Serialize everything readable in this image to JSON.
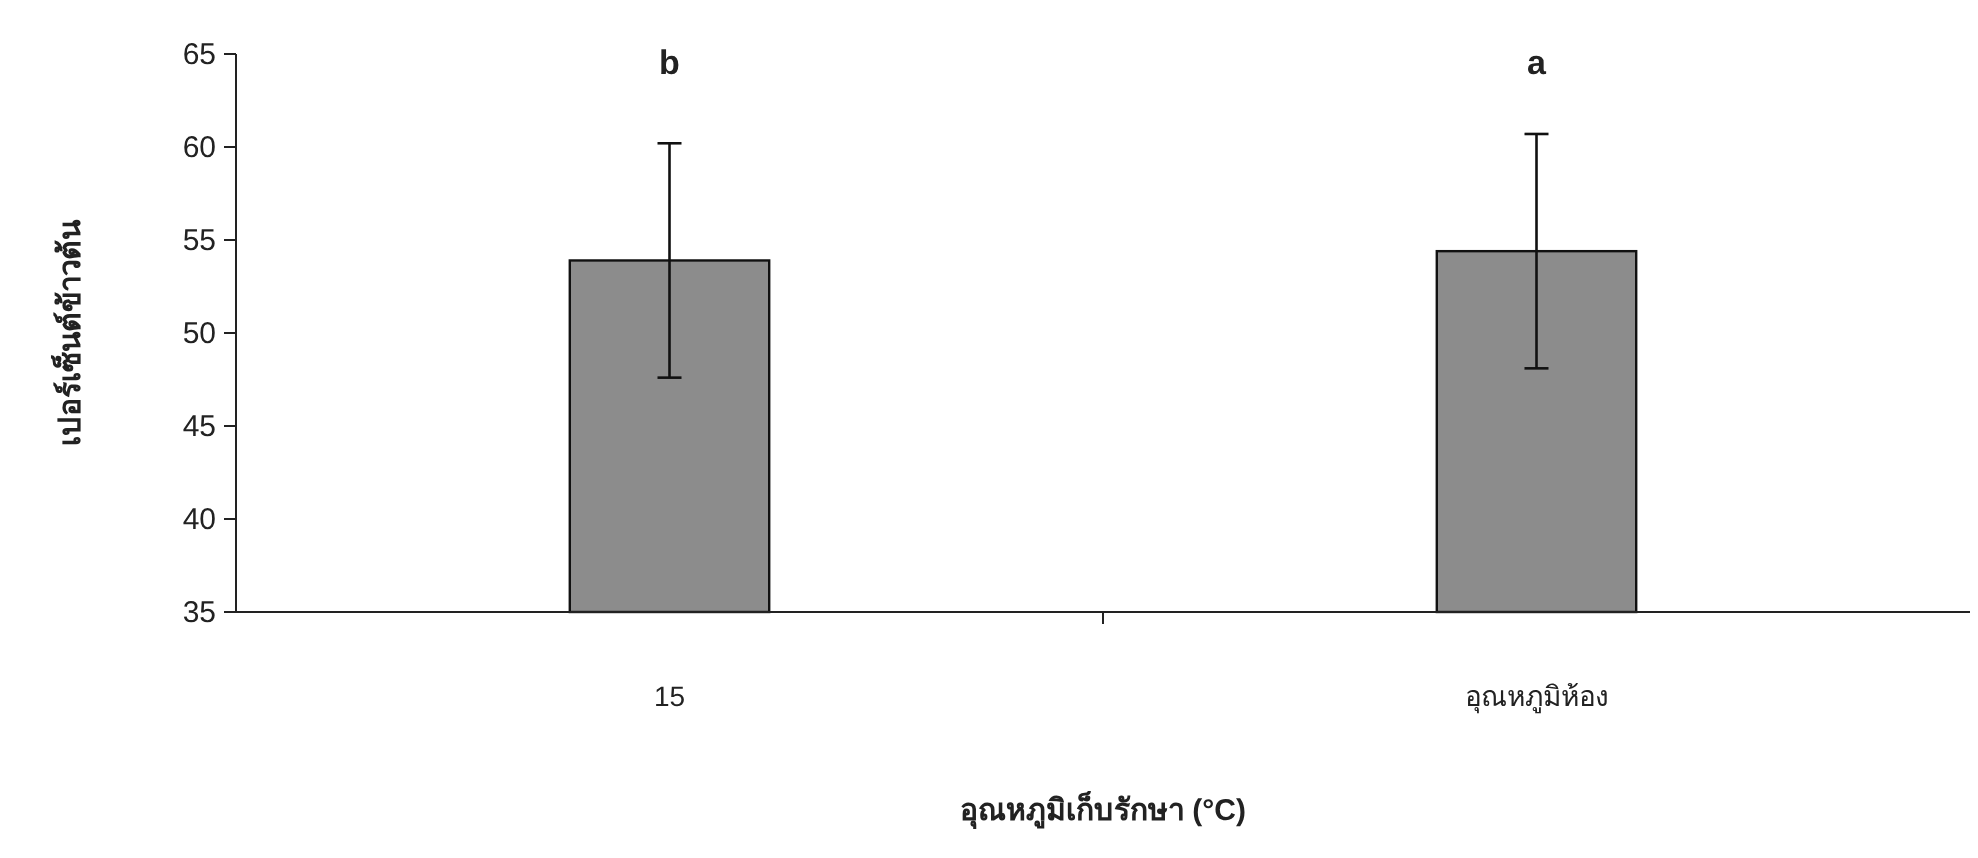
{
  "chart_data": {
    "type": "bar",
    "xlabel": "อุณหภูมิเก็บรักษา (°C)",
    "ylabel": "เปอร์เซ็นต์ข้าวต้น",
    "categories": [
      "15",
      "อุณหภูมิห้อง"
    ],
    "values": [
      53.9,
      54.4
    ],
    "errors": [
      6.3,
      6.3
    ],
    "color": "#8c8c8c",
    "ylim": [
      35,
      65
    ],
    "yticks": [
      35,
      40,
      45,
      50,
      55,
      60,
      65
    ],
    "grid": false,
    "annotations": [
      "b",
      "a"
    ]
  }
}
